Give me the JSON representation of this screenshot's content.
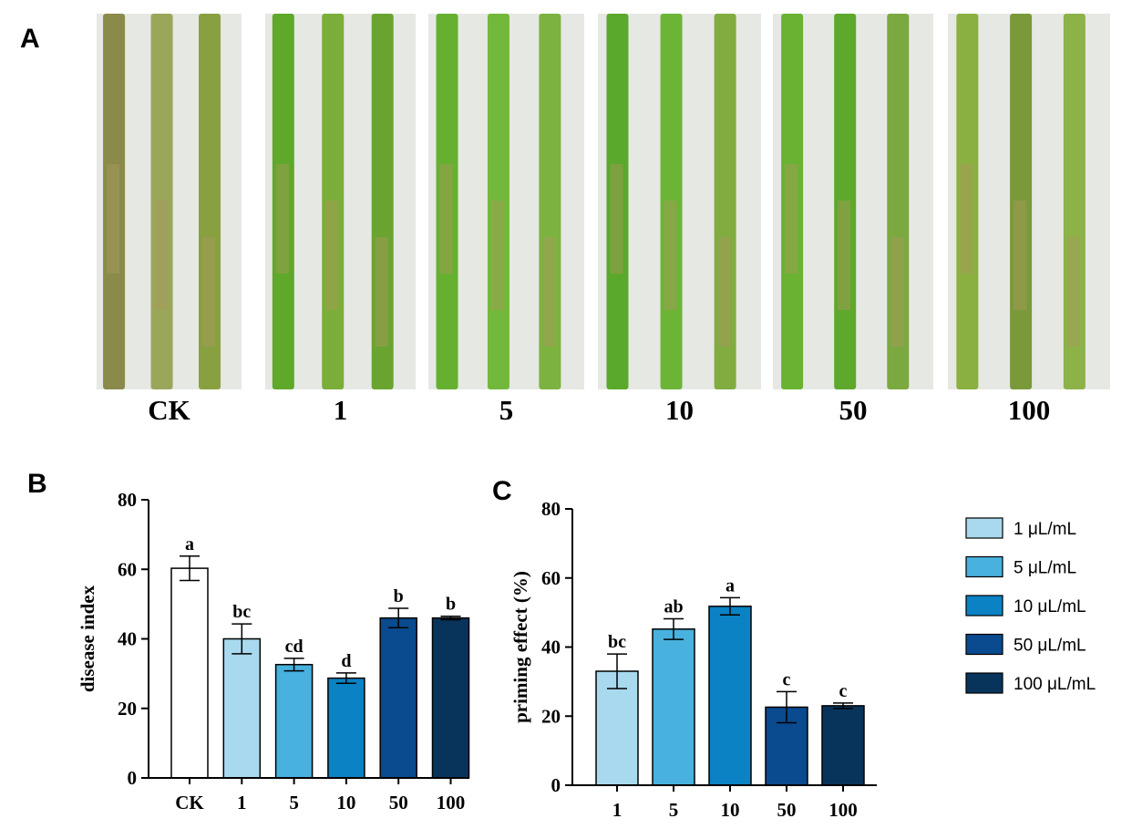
{
  "panel_a": {
    "label": "A",
    "labels": [
      "CK",
      "1",
      "5",
      "10",
      "50",
      "100"
    ]
  },
  "chart_data": [
    {
      "type": "bar",
      "panel": "B",
      "y_label": "disease index",
      "categories": [
        "CK",
        "1",
        "5",
        "10",
        "50",
        "100"
      ],
      "values": [
        60.3,
        40,
        32.6,
        28.7,
        46,
        46
      ],
      "errors": [
        3.5,
        4.3,
        1.8,
        1.5,
        2.8,
        0.5
      ],
      "significance": [
        "a",
        "bc",
        "cd",
        "d",
        "b",
        "b"
      ],
      "colors": [
        "#ffffff",
        "#a9d9ee",
        "#48b1dd",
        "#0b82c4",
        "#0a4a8e",
        "#08345c"
      ],
      "ylim": [
        0,
        80
      ],
      "yticks": [
        0,
        20,
        40,
        60,
        80
      ]
    },
    {
      "type": "bar",
      "panel": "C",
      "y_label": "priming effect (%)",
      "categories": [
        "1",
        "5",
        "10",
        "50",
        "100"
      ],
      "values": [
        33,
        45.2,
        51.8,
        22.6,
        23
      ],
      "errors": [
        5,
        3,
        2.5,
        4.5,
        0.8
      ],
      "significance": [
        "bc",
        "ab",
        "a",
        "c",
        "c"
      ],
      "colors": [
        "#a9d9ee",
        "#48b1dd",
        "#0b82c4",
        "#0a4a8e",
        "#08345c"
      ],
      "legend": [
        "1 μL/mL",
        "5 μL/mL",
        "10 μL/mL",
        "50 μL/mL",
        "100 μL/mL"
      ],
      "ylim": [
        0,
        80
      ],
      "yticks": [
        0,
        20,
        40,
        60,
        80
      ]
    }
  ]
}
